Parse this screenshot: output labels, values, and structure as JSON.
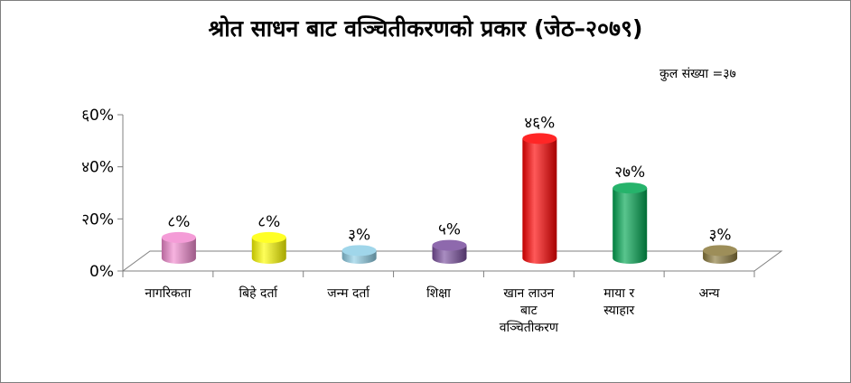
{
  "chart_data": {
    "type": "bar",
    "title": "श्रोत साधन बाट वञ्चितीकरणको प्रकार (जेठ–२०७९)",
    "note": "कुल संख्या =३७",
    "categories": [
      [
        "नागरिकता"
      ],
      [
        "बिहे दर्ता"
      ],
      [
        "जन्म दर्ता"
      ],
      [
        "शिक्षा"
      ],
      [
        "खान लाउन",
        "बाट",
        "वञ्चितीकरण"
      ],
      [
        "माया र",
        "स्याहार"
      ],
      [
        "अन्य"
      ]
    ],
    "values": [
      8,
      8,
      3,
      5,
      46,
      27,
      3
    ],
    "value_labels": [
      "८%",
      "८%",
      "३%",
      "५%",
      "४६%",
      "२७%",
      "३%"
    ],
    "ylim": [
      0,
      60
    ],
    "yticks": [
      0,
      20,
      40,
      60
    ],
    "ytick_labels": [
      "0%",
      "२0%",
      "४0%",
      "६0%"
    ],
    "colors": [
      "#f28ad0",
      "#ffff00",
      "#8fcfe6",
      "#7a4f9f",
      "#ff0000",
      "#00a651",
      "#8c7a3c"
    ],
    "xlabel": "",
    "ylabel": "",
    "grid": false,
    "legend": "none"
  }
}
